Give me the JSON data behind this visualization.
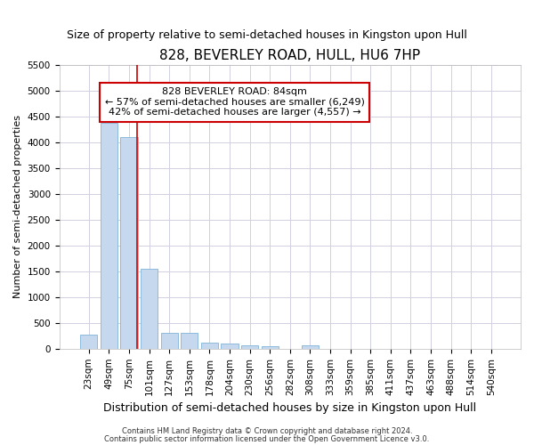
{
  "title": "828, BEVERLEY ROAD, HULL, HU6 7HP",
  "subtitle": "Size of property relative to semi-detached houses in Kingston upon Hull",
  "xlabel": "Distribution of semi-detached houses by size in Kingston upon Hull",
  "ylabel": "Number of semi-detached properties",
  "footer1": "Contains HM Land Registry data © Crown copyright and database right 2024.",
  "footer2": "Contains public sector information licensed under the Open Government Licence v3.0.",
  "categories": [
    "23sqm",
    "49sqm",
    "75sqm",
    "101sqm",
    "127sqm",
    "153sqm",
    "178sqm",
    "204sqm",
    "230sqm",
    "256sqm",
    "282sqm",
    "308sqm",
    "333sqm",
    "359sqm",
    "385sqm",
    "411sqm",
    "437sqm",
    "463sqm",
    "488sqm",
    "514sqm",
    "540sqm"
  ],
  "values": [
    270,
    4380,
    4100,
    1550,
    310,
    310,
    120,
    100,
    60,
    50,
    0,
    60,
    0,
    0,
    0,
    0,
    0,
    0,
    0,
    0,
    0
  ],
  "bar_color": "#c5d8ee",
  "bar_edge_color": "#7fb3d9",
  "grid_color": "#d0d0e0",
  "ylim": [
    0,
    5500
  ],
  "yticks": [
    0,
    500,
    1000,
    1500,
    2000,
    2500,
    3000,
    3500,
    4000,
    4500,
    5000,
    5500
  ],
  "red_line_color": "#cc0000",
  "red_line_x": 2.42,
  "annotation_text_line1": "828 BEVERLEY ROAD: 84sqm",
  "annotation_text_line2": "← 57% of semi-detached houses are smaller (6,249)",
  "annotation_text_line3": "42% of semi-detached houses are larger (4,557) →",
  "annotation_box_edge": "#cc0000",
  "title_fontsize": 11,
  "subtitle_fontsize": 9,
  "annotation_fontsize": 8,
  "tick_fontsize": 7.5,
  "ylabel_fontsize": 8,
  "xlabel_fontsize": 9,
  "footer_fontsize": 6
}
